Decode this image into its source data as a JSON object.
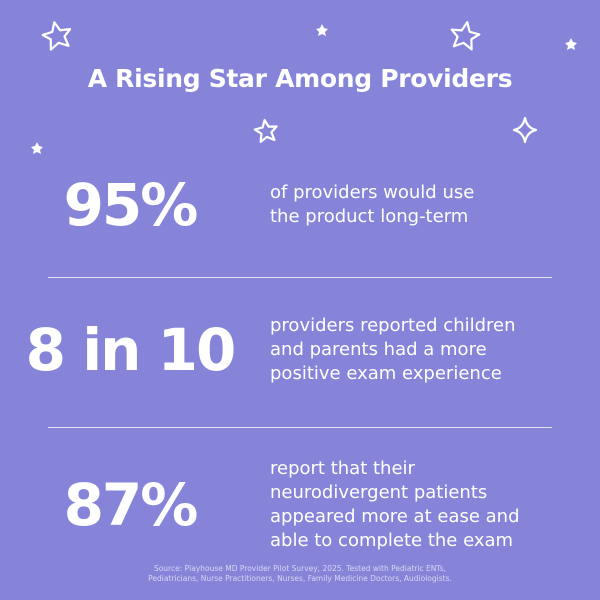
{
  "header": {
    "title": "A Rising Star Among Providers"
  },
  "stats": [
    {
      "figure": "95%",
      "lines": [
        "of providers would use",
        "the product long-term"
      ]
    },
    {
      "figure": "8 in 10",
      "lines": [
        "providers reported children",
        "and parents had a more",
        "positive exam experience"
      ]
    },
    {
      "figure": "87%",
      "lines": [
        "report that their",
        "neurodivergent patients",
        "appeared more at ease and",
        "able to complete the exam"
      ]
    }
  ],
  "source": {
    "lines": [
      "Source: Playhouse MD Provider Pilot Survey, 2025. Tested with Pediatric ENTs,",
      "Pediatricians, Nurse Practitioners, Nurses, Family Medicine Doctors, Audiologists."
    ]
  }
}
